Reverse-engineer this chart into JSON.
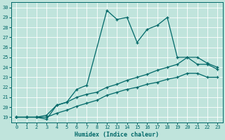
{
  "xlabel": "Humidex (Indice chaleur)",
  "bg_color": "#c0e4dc",
  "grid_color": "#ffffff",
  "line_color": "#006868",
  "xtick_labels": [
    "0",
    "1",
    "2",
    "3",
    "4",
    "5",
    "6",
    "7",
    "8",
    "12",
    "13",
    "14",
    "15",
    "16",
    "17",
    "18",
    "19",
    "20",
    "21",
    "22",
    "23"
  ],
  "ytick_labels": [
    "19",
    "20",
    "21",
    "22",
    "23",
    "24",
    "25",
    "26",
    "27",
    "28",
    "29",
    "30"
  ],
  "ylim_min": 18.5,
  "ylim_max": 30.5,
  "series1_xi": [
    0,
    1,
    2,
    3,
    4,
    5,
    6,
    7,
    9,
    10,
    11,
    12,
    13,
    14,
    15,
    16,
    17,
    18,
    19,
    20
  ],
  "series1_y": [
    19,
    19,
    19,
    18.8,
    20.2,
    20.5,
    21.8,
    22.2,
    29.7,
    28.8,
    29.0,
    26.5,
    27.8,
    28.2,
    29.0,
    25.0,
    25.0,
    24.3,
    24.3,
    23.8
  ],
  "series2_xi": [
    0,
    1,
    2,
    3,
    4,
    5,
    6,
    7,
    8,
    9,
    10,
    11,
    12,
    13,
    14,
    15,
    16,
    17,
    18,
    19,
    20
  ],
  "series2_y": [
    19,
    19,
    19,
    19.2,
    20.2,
    20.5,
    21.0,
    21.3,
    21.5,
    22.0,
    22.3,
    22.7,
    23.0,
    23.3,
    23.7,
    24.0,
    24.3,
    25.0,
    25.0,
    24.4,
    24.0
  ],
  "series3_xi": [
    0,
    1,
    2,
    3,
    4,
    5,
    6,
    7,
    8,
    9,
    10,
    11,
    12,
    13,
    14,
    15,
    16,
    17,
    18,
    19,
    20
  ],
  "series3_y": [
    19,
    19,
    19,
    19,
    19.4,
    19.7,
    20.1,
    20.4,
    20.7,
    21.2,
    21.5,
    21.8,
    22.0,
    22.3,
    22.5,
    22.8,
    23.0,
    23.4,
    23.4,
    23.0,
    23.0
  ]
}
